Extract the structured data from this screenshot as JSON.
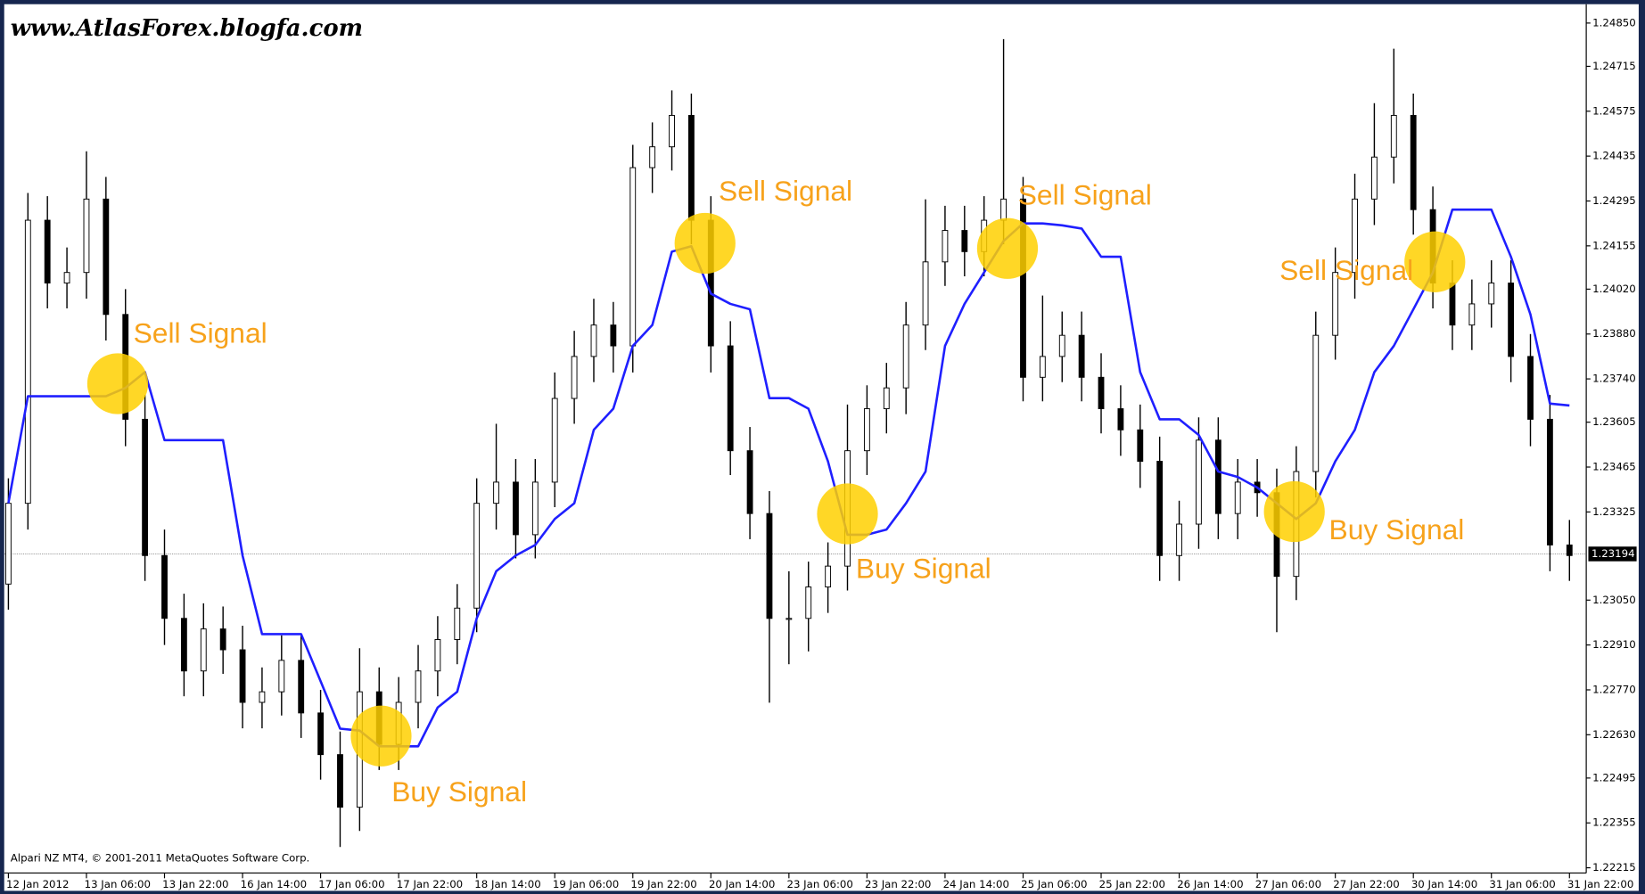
{
  "chart_data": {
    "type": "candlestick",
    "title": "www.AtlasForex.blogfa.com",
    "footer": "Alpari NZ MT4, © 2001-2011 MetaQuotes Software Corp.",
    "x": [
      "12 Jan 2012",
      null,
      null,
      null,
      "13 Jan 06:00",
      null,
      null,
      null,
      "13 Jan 22:00",
      null,
      null,
      null,
      "16 Jan 14:00",
      null,
      null,
      null,
      "17 Jan 06:00",
      null,
      null,
      null,
      "17 Jan 22:00",
      null,
      null,
      null,
      "18 Jan 14:00",
      null,
      null,
      null,
      "19 Jan 06:00",
      null,
      null,
      null,
      "19 Jan 22:00",
      null,
      null,
      null,
      "20 Jan 14:00",
      null,
      null,
      null,
      "23 Jan 06:00",
      null,
      null,
      null,
      "23 Jan 22:00",
      null,
      null,
      null,
      "24 Jan 14:00",
      null,
      null,
      null,
      "25 Jan 06:00",
      null,
      null,
      null,
      "25 Jan 22:00",
      null,
      null,
      null,
      "26 Jan 14:00",
      null,
      null,
      null,
      "27 Jan 06:00",
      null,
      null,
      null,
      "27 Jan 22:00",
      null,
      null,
      null,
      "30 Jan 14:00",
      null,
      null,
      null,
      "31 Jan 06:00",
      null,
      null,
      null,
      "31 Jan 22:00"
    ],
    "open": [
      1.231,
      1.23352,
      1.24235,
      1.24039,
      1.24072,
      1.24301,
      1.23941,
      1.23614,
      1.23189,
      1.22993,
      1.22829,
      1.2296,
      1.22895,
      1.22731,
      1.22764,
      1.22862,
      1.22698,
      1.22568,
      1.22404,
      1.22764,
      1.226,
      1.22731,
      1.22829,
      1.22927,
      1.23025,
      1.23352,
      1.23418,
      1.23254,
      1.23418,
      1.23679,
      1.2381,
      1.23908,
      1.23843,
      1.24399,
      1.24464,
      1.24562,
      1.24235,
      1.23843,
      1.23516,
      1.2332,
      1.22993,
      1.22993,
      1.23091,
      1.23156,
      1.23516,
      1.23647,
      1.23712,
      1.23908,
      1.24105,
      1.24203,
      1.24137,
      1.24235,
      1.24301,
      1.23745,
      1.2381,
      1.23876,
      1.23745,
      1.23647,
      1.23581,
      1.23483,
      1.23189,
      1.23287,
      1.23549,
      1.2332,
      1.23418,
      1.23385,
      1.23124,
      1.23451,
      1.23876,
      1.24072,
      1.24301,
      1.24432,
      1.24562,
      1.24268,
      1.24039,
      1.23908,
      1.23974,
      1.24039,
      1.2381,
      1.23614,
      1.23222
    ],
    "high": [
      1.2343,
      1.2432,
      1.2431,
      1.2415,
      1.2445,
      1.2437,
      1.2402,
      1.2369,
      1.2327,
      1.2307,
      1.2304,
      1.2303,
      1.2297,
      1.2284,
      1.2294,
      1.2294,
      1.2277,
      1.2264,
      1.229,
      1.2284,
      1.2281,
      1.2291,
      1.23,
      1.231,
      1.2343,
      1.236,
      1.2349,
      1.2349,
      1.2376,
      1.2389,
      1.2399,
      1.2398,
      1.2447,
      1.2454,
      1.2464,
      1.2463,
      1.2431,
      1.2392,
      1.2359,
      1.2339,
      1.2314,
      1.2317,
      1.2323,
      1.2366,
      1.2372,
      1.2379,
      1.2398,
      1.243,
      1.2428,
      1.2428,
      1.2431,
      1.248,
      1.2437,
      1.24,
      1.2395,
      1.2395,
      1.2382,
      1.2372,
      1.2366,
      1.2356,
      1.2336,
      1.2362,
      1.2362,
      1.2349,
      1.2349,
      1.2346,
      1.2353,
      1.2395,
      1.2415,
      1.2438,
      1.246,
      1.2477,
      1.2463,
      1.2434,
      1.2411,
      1.2405,
      1.2411,
      1.2411,
      1.2388,
      1.2369,
      1.233
    ],
    "low": [
      1.2302,
      1.2327,
      1.2396,
      1.2396,
      1.2399,
      1.2386,
      1.2353,
      1.2311,
      1.2291,
      1.2275,
      1.2275,
      1.2282,
      1.2265,
      1.2265,
      1.2269,
      1.2262,
      1.2249,
      1.2228,
      1.2233,
      1.2252,
      1.2252,
      1.2265,
      1.2275,
      1.2285,
      1.2295,
      1.2327,
      1.2318,
      1.2318,
      1.2334,
      1.236,
      1.2373,
      1.2376,
      1.2376,
      1.2432,
      1.2439,
      1.2416,
      1.2376,
      1.2344,
      1.2324,
      1.2273,
      1.2285,
      1.2289,
      1.2301,
      1.2308,
      1.2344,
      1.2357,
      1.2363,
      1.2383,
      1.2403,
      1.2406,
      1.2406,
      1.2416,
      1.2367,
      1.2367,
      1.2373,
      1.2367,
      1.2357,
      1.235,
      1.234,
      1.2311,
      1.2311,
      1.2321,
      1.2324,
      1.2324,
      1.2331,
      1.2295,
      1.2305,
      1.2337,
      1.238,
      1.2399,
      1.2422,
      1.2435,
      1.2419,
      1.2396,
      1.2383,
      1.2383,
      1.239,
      1.2373,
      1.2353,
      1.2314,
      1.2311
    ],
    "close": [
      1.23352,
      1.24235,
      1.24039,
      1.24072,
      1.24301,
      1.23941,
      1.23614,
      1.23189,
      1.22993,
      1.22829,
      1.2296,
      1.22895,
      1.22731,
      1.22764,
      1.22862,
      1.22698,
      1.22568,
      1.22404,
      1.22764,
      1.226,
      1.22731,
      1.22829,
      1.22927,
      1.23025,
      1.23352,
      1.23418,
      1.23254,
      1.23418,
      1.23679,
      1.2381,
      1.23908,
      1.23843,
      1.24399,
      1.24464,
      1.24562,
      1.24235,
      1.23843,
      1.23516,
      1.2332,
      1.22993,
      1.22993,
      1.23091,
      1.23156,
      1.23516,
      1.23647,
      1.23712,
      1.23908,
      1.24105,
      1.24203,
      1.24137,
      1.24235,
      1.24301,
      1.23745,
      1.2381,
      1.23876,
      1.23745,
      1.23647,
      1.23581,
      1.23483,
      1.23189,
      1.23287,
      1.23549,
      1.2332,
      1.23418,
      1.23385,
      1.23124,
      1.23451,
      1.23876,
      1.24072,
      1.24301,
      1.24432,
      1.24562,
      1.24268,
      1.24039,
      1.23908,
      1.23974,
      1.24039,
      1.2381,
      1.23614,
      1.23222,
      1.23189
    ],
    "up_color": "#ffffff",
    "down_color": "#000000",
    "wick_color": "#000000",
    "indicator": {
      "color": "#1f1fff",
      "values": [
        1.23352,
        1.23686,
        1.23686,
        1.23686,
        1.23686,
        1.23686,
        1.23712,
        1.23761,
        1.23549,
        1.23549,
        1.23549,
        1.23549,
        1.23189,
        1.22944,
        1.22944,
        1.22944,
        1.22797,
        1.22649,
        1.22643,
        1.22594,
        1.22594,
        1.22594,
        1.22715,
        1.22764,
        1.22993,
        1.2314,
        1.23189,
        1.23222,
        1.23303,
        1.23352,
        1.23581,
        1.23647,
        1.23843,
        1.23908,
        1.24137,
        1.24154,
        1.24006,
        1.23974,
        1.23957,
        1.2368,
        1.2368,
        1.23647,
        1.23483,
        1.23254,
        1.23254,
        1.2327,
        1.23352,
        1.23451,
        1.23843,
        1.23974,
        1.24072,
        1.2417,
        1.24225,
        1.24225,
        1.24219,
        1.24209,
        1.24121,
        1.24121,
        1.23761,
        1.23614,
        1.23614,
        1.23565,
        1.23451,
        1.23434,
        1.23401,
        1.23352,
        1.23303,
        1.23352,
        1.23483,
        1.23581,
        1.23761,
        1.23843,
        1.23957,
        1.24072,
        1.24268,
        1.24268,
        1.24268,
        1.24121,
        1.23941,
        1.23663,
        1.23657
      ]
    },
    "price_line": 1.23194,
    "signal_color": "#ffd000",
    "signals": [
      {
        "label": "Sell Signal",
        "x": 5.6,
        "y": 1.23725
      },
      {
        "label": "Buy Signal",
        "x": 19.1,
        "y": 1.22626
      },
      {
        "label": "Sell Signal",
        "x": 35.7,
        "y": 1.24163
      },
      {
        "label": "Buy Signal",
        "x": 43,
        "y": 1.23319
      },
      {
        "label": "Sell Signal",
        "x": 51.2,
        "y": 1.24147
      },
      {
        "label": "Buy Signal",
        "x": 65.9,
        "y": 1.23326
      },
      {
        "label": "Sell Signal",
        "x": 73.1,
        "y": 1.24105
      }
    ],
    "ylim": [
      1.222,
      1.249
    ],
    "yticks": [
      {
        "value": 1.2485,
        "label": "1.24850"
      },
      1.24715,
      1.24575,
      1.24435,
      1.24295,
      1.24155,
      {
        "value": 1.2402,
        "label": "1.24020"
      },
      {
        "value": 1.2388,
        "label": "1.23880"
      },
      {
        "value": 1.2374,
        "label": "1.23740"
      },
      1.23605,
      1.23465,
      1.23325,
      {
        "value": 1.2305,
        "label": "1.23050"
      },
      {
        "value": 1.2291,
        "label": "1.22910"
      },
      {
        "value": 1.2277,
        "label": "1.22770"
      },
      {
        "value": 1.2263,
        "label": "1.22630"
      },
      1.22495,
      1.22355,
      1.22215
    ]
  }
}
